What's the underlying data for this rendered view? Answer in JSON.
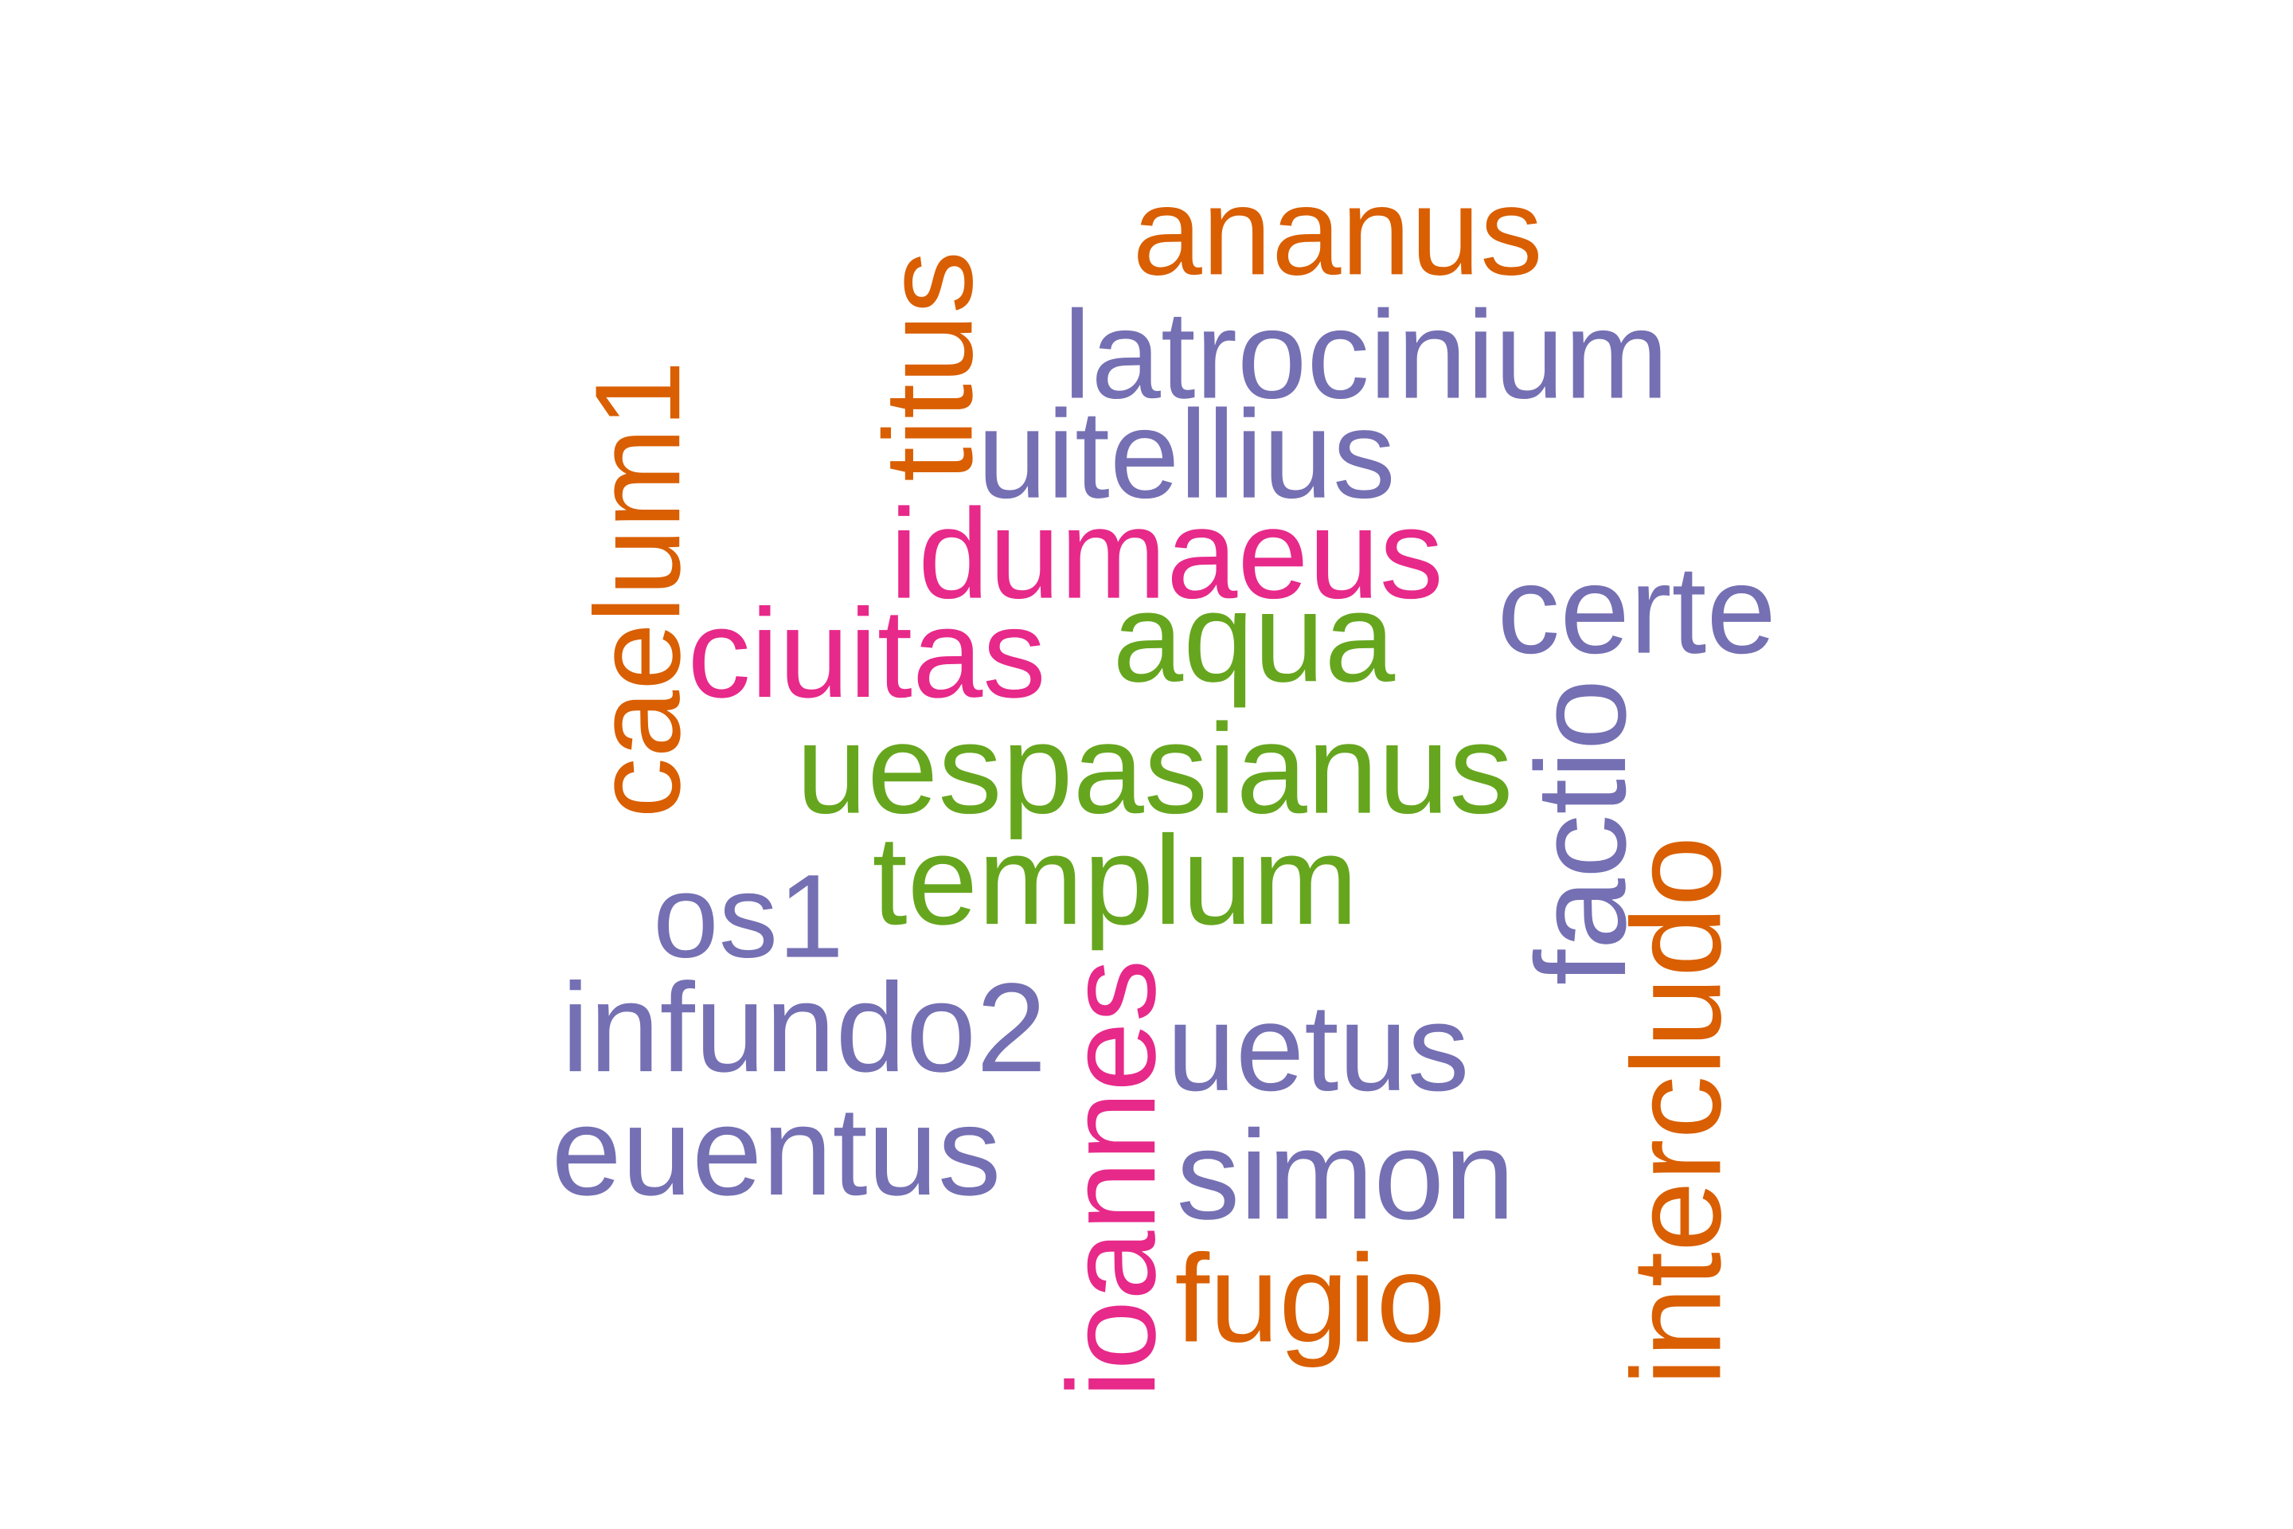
{
  "word_cloud": {
    "palette": {
      "orange": "#d95f02",
      "purple": "#7570b3",
      "magenta": "#e7298a",
      "green": "#66a61e"
    },
    "words": [
      {
        "text": "ananus",
        "color": "orange",
        "vertical": false
      },
      {
        "text": "latrocinium",
        "color": "purple",
        "vertical": false
      },
      {
        "text": "titus",
        "color": "orange",
        "vertical": true
      },
      {
        "text": "uitellius",
        "color": "purple",
        "vertical": false
      },
      {
        "text": "caelum1",
        "color": "orange",
        "vertical": true
      },
      {
        "text": "idumaeus",
        "color": "magenta",
        "vertical": false
      },
      {
        "text": "certe",
        "color": "purple",
        "vertical": false
      },
      {
        "text": "ciuitas",
        "color": "magenta",
        "vertical": false
      },
      {
        "text": "aqua",
        "color": "green",
        "vertical": false
      },
      {
        "text": "uespasianus",
        "color": "green",
        "vertical": false
      },
      {
        "text": "factio",
        "color": "purple",
        "vertical": true
      },
      {
        "text": "templum",
        "color": "green",
        "vertical": false
      },
      {
        "text": "intercludo",
        "color": "orange",
        "vertical": true
      },
      {
        "text": "os1",
        "color": "purple",
        "vertical": false
      },
      {
        "text": "infundo2",
        "color": "purple",
        "vertical": false
      },
      {
        "text": "ioannes",
        "color": "magenta",
        "vertical": true
      },
      {
        "text": "uetus",
        "color": "purple",
        "vertical": false
      },
      {
        "text": "euentus",
        "color": "purple",
        "vertical": false
      },
      {
        "text": "simon",
        "color": "purple",
        "vertical": false
      },
      {
        "text": "fugio",
        "color": "orange",
        "vertical": false
      }
    ]
  }
}
